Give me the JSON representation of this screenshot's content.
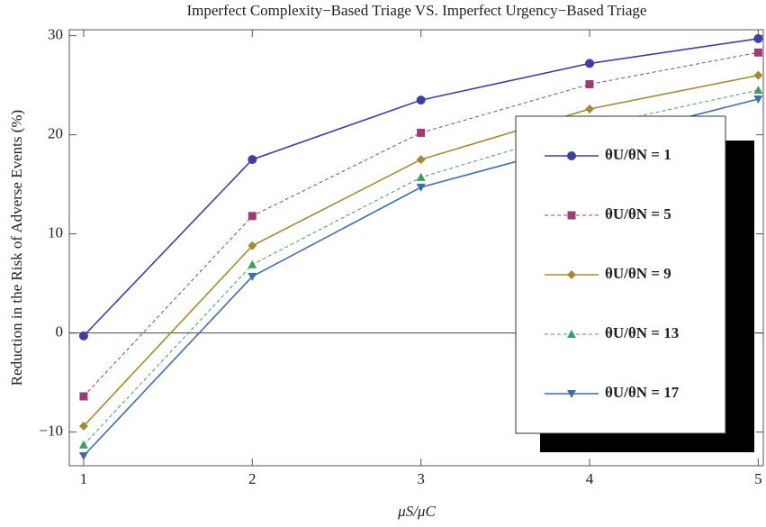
{
  "chart_data": {
    "type": "line",
    "title": "Imperfect Complexity−Based Triage VS. Imperfect Urgency−Based Triage",
    "x_label": "μS/μC",
    "y_label": "Reduction in the Risk of Adverse Events (%)",
    "x": [
      1,
      2,
      3,
      4,
      5
    ],
    "xlim": [
      0.915,
      5.03
    ],
    "xticks": [
      1,
      2,
      3,
      4,
      5
    ],
    "ylim": [
      -13.4,
      30.6
    ],
    "yticks": [
      {
        "value": -10,
        "label": "−10"
      },
      0,
      10,
      20,
      30
    ],
    "zero_line": true,
    "series": [
      {
        "name": "θU/θN = 1",
        "color": "#3f3f9f",
        "marker": "circle",
        "dashed": false,
        "values": [
          -0.3,
          17.5,
          23.5,
          27.2,
          29.7
        ]
      },
      {
        "name": "θU/θN = 5",
        "color": "#9e3d74",
        "marker": "square",
        "dashed": true,
        "values": [
          -6.4,
          11.8,
          20.2,
          25.1,
          28.3
        ]
      },
      {
        "name": "θU/θN = 9",
        "color": "#a08b37",
        "marker": "diamond",
        "dashed": false,
        "values": [
          -9.4,
          8.8,
          17.5,
          22.6,
          26.0
        ]
      },
      {
        "name": "θU/θN = 13",
        "color": "#3f9f5f",
        "marker": "triangle-up",
        "dashed": true,
        "values": [
          -11.3,
          6.9,
          15.7,
          20.8,
          24.5
        ]
      },
      {
        "name": "θU/θN = 17",
        "color": "#3f6fa8",
        "marker": "triangle-down",
        "dashed": false,
        "values": [
          -12.4,
          5.7,
          14.7,
          19.3,
          23.6
        ]
      }
    ]
  }
}
